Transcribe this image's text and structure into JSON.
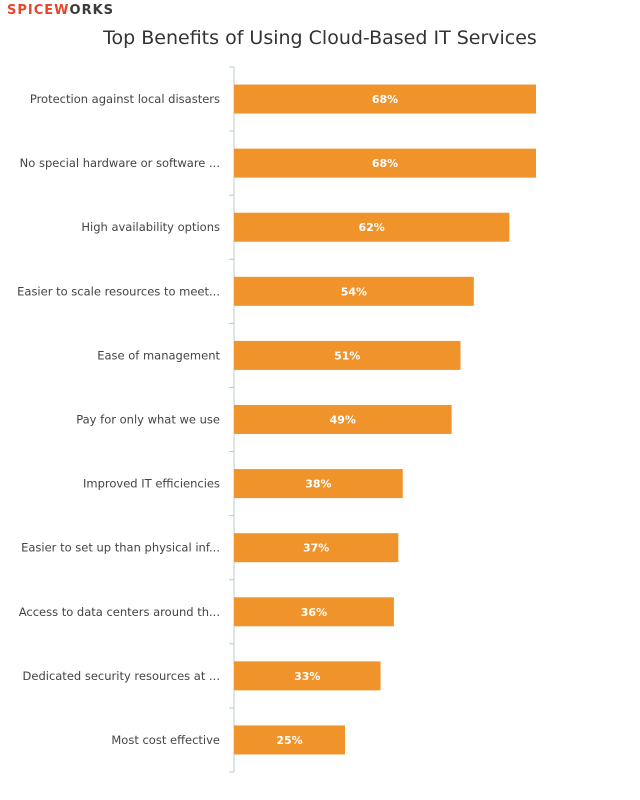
{
  "brand": {
    "part1": "SPICEW",
    "part2": "RKS",
    "middle": "O"
  },
  "colors": {
    "bar": "#f0932a",
    "axis": "#b8c8dc",
    "brand_red": "#e8462a"
  },
  "chart_data": {
    "type": "bar",
    "orientation": "horizontal",
    "title": "Top Benefits of Using Cloud-Based IT Services",
    "categories": [
      "Protection against local disasters",
      "No special hardware or software ...",
      "High availability options",
      "Easier to scale resources to meet...",
      "Ease of management",
      "Pay for only what we use",
      "Improved IT efficiencies",
      "Easier to set up than physical inf...",
      "Access to data centers around th...",
      "Dedicated security resources at ...",
      "Most cost effective"
    ],
    "values": [
      68,
      68,
      62,
      54,
      51,
      49,
      38,
      37,
      36,
      33,
      25
    ],
    "value_labels": [
      "68%",
      "68%",
      "62%",
      "54%",
      "51%",
      "49%",
      "38%",
      "37%",
      "36%",
      "33%",
      "25%"
    ],
    "xlim": [
      0,
      68
    ],
    "grid": false,
    "legend": "none"
  }
}
